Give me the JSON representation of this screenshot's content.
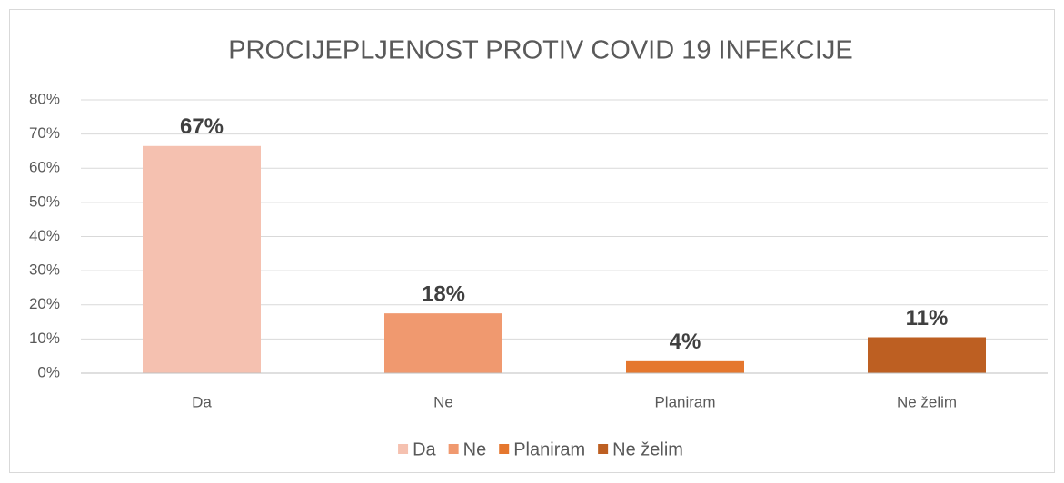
{
  "chart_data": {
    "type": "bar",
    "title": "PROCIJEPLJENOST PROTIV COVID 19 INFEKCIJE",
    "categories": [
      "Da",
      "Ne",
      "Planiram",
      "Ne želim"
    ],
    "values": [
      66.5,
      17.5,
      3.5,
      10.5
    ],
    "value_labels": [
      "67%",
      "18%",
      "4%",
      "11%"
    ],
    "colors": [
      "#f5c1b0",
      "#f0996f",
      "#e5772e",
      "#bd5f22"
    ],
    "ylim": [
      0,
      80
    ],
    "yticks": [
      {
        "value": 0,
        "label": "0%"
      },
      {
        "value": 10,
        "label": "10%"
      },
      {
        "value": 20,
        "label": "20%"
      },
      {
        "value": 30,
        "label": "30%"
      },
      {
        "value": 40,
        "label": "40%"
      },
      {
        "value": 50,
        "label": "50%"
      },
      {
        "value": 60,
        "label": "60%"
      },
      {
        "value": 70,
        "label": "70%"
      },
      {
        "value": 80,
        "label": "80%"
      }
    ],
    "grid": true,
    "legend": "bottom"
  }
}
